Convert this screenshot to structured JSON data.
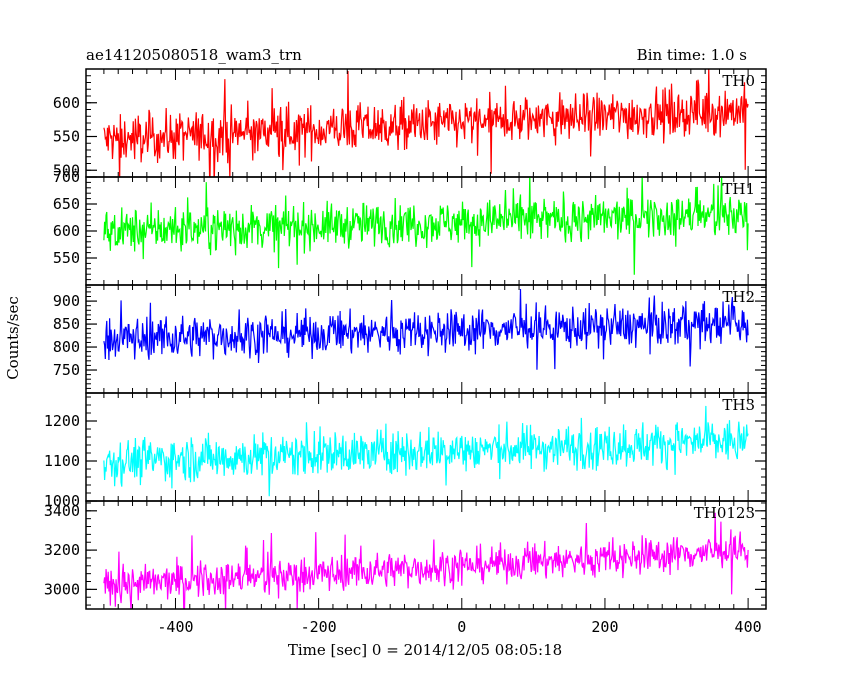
{
  "header": {
    "title": "ae141205080518_wam3_trn",
    "bin_time": "Bin time: 1.0 s"
  },
  "chart_data": {
    "type": "line",
    "xlabel": "Time [sec] 0 = 2014/12/05 08:05:18",
    "ylabel": "Counts/sec",
    "xlim": [
      -525,
      425
    ],
    "x_ticks": [
      -400,
      -200,
      0,
      200,
      400
    ],
    "x_range_data": [
      -500,
      400
    ],
    "grid": false,
    "panels": [
      {
        "name": "TH0",
        "color": "#ff0000",
        "ylim": [
          490,
          650
        ],
        "yticks": [
          500,
          550,
          600
        ],
        "trend": [
          545,
          590
        ],
        "noise": 18,
        "spike": 60
      },
      {
        "name": "TH1",
        "color": "#00ff00",
        "ylim": [
          500,
          700
        ],
        "yticks": [
          550,
          600,
          650,
          700
        ],
        "trend": [
          600,
          630
        ],
        "noise": 20,
        "spike": 55
      },
      {
        "name": "TH2",
        "color": "#0000ff",
        "ylim": [
          700,
          935
        ],
        "yticks": [
          750,
          800,
          850,
          900
        ],
        "trend": [
          818,
          852
        ],
        "noise": 23,
        "spike": 65
      },
      {
        "name": "TH3",
        "color": "#00ffff",
        "ylim": [
          1000,
          1270
        ],
        "yticks": [
          1000,
          1100,
          1200
        ],
        "trend": [
          1100,
          1150
        ],
        "noise": 28,
        "spike": 90
      },
      {
        "name": "TH0123",
        "color": "#ff00ff",
        "ylim": [
          2900,
          3450
        ],
        "yticks": [
          3000,
          3200,
          3400
        ],
        "trend": [
          3020,
          3200
        ],
        "noise": 45,
        "spike": 170
      }
    ]
  }
}
